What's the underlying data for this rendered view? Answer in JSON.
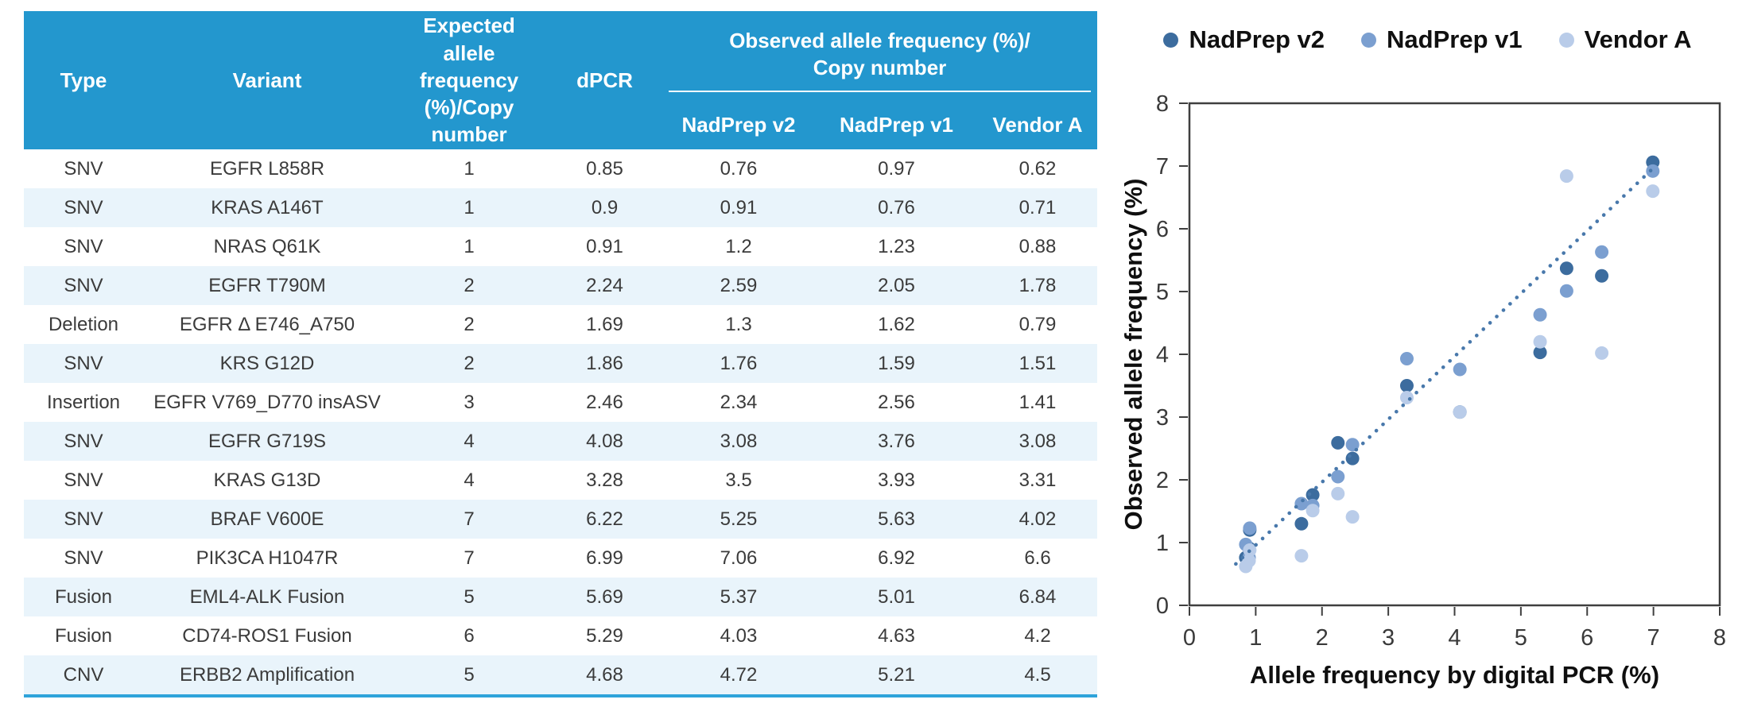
{
  "table": {
    "columns": [
      "Type",
      "Variant",
      "Expected allele frequency (%)/Copy number",
      "dPCR"
    ],
    "observed_group_line1": "Observed allele frequency (%)/",
    "observed_group_line2": "Copy number",
    "sub_columns": [
      "NadPrep v2",
      "NadPrep v1",
      "Vendor A"
    ],
    "rows": [
      {
        "type": "SNV",
        "variant": "EGFR L858R",
        "expected": "1",
        "dpcr": "0.85",
        "nadprep_v2": "0.76",
        "nadprep_v1": "0.97",
        "vendor_a": "0.62"
      },
      {
        "type": "SNV",
        "variant": "KRAS A146T",
        "expected": "1",
        "dpcr": "0.9",
        "nadprep_v2": "0.91",
        "nadprep_v1": "0.76",
        "vendor_a": "0.71"
      },
      {
        "type": "SNV",
        "variant": "NRAS Q61K",
        "expected": "1",
        "dpcr": "0.91",
        "nadprep_v2": "1.2",
        "nadprep_v1": "1.23",
        "vendor_a": "0.88"
      },
      {
        "type": "SNV",
        "variant": "EGFR T790M",
        "expected": "2",
        "dpcr": "2.24",
        "nadprep_v2": "2.59",
        "nadprep_v1": "2.05",
        "vendor_a": "1.78"
      },
      {
        "type": "Deletion",
        "variant": "EGFR Δ E746_A750",
        "expected": "2",
        "dpcr": "1.69",
        "nadprep_v2": "1.3",
        "nadprep_v1": "1.62",
        "vendor_a": "0.79"
      },
      {
        "type": "SNV",
        "variant": "KRS G12D",
        "expected": "2",
        "dpcr": "1.86",
        "nadprep_v2": "1.76",
        "nadprep_v1": "1.59",
        "vendor_a": "1.51"
      },
      {
        "type": "Insertion",
        "variant": "EGFR V769_D770 insASV",
        "expected": "3",
        "dpcr": "2.46",
        "nadprep_v2": "2.34",
        "nadprep_v1": "2.56",
        "vendor_a": "1.41"
      },
      {
        "type": "SNV",
        "variant": "EGFR G719S",
        "expected": "4",
        "dpcr": "4.08",
        "nadprep_v2": "3.08",
        "nadprep_v1": "3.76",
        "vendor_a": "3.08"
      },
      {
        "type": "SNV",
        "variant": "KRAS G13D",
        "expected": "4",
        "dpcr": "3.28",
        "nadprep_v2": "3.5",
        "nadprep_v1": "3.93",
        "vendor_a": "3.31"
      },
      {
        "type": "SNV",
        "variant": "BRAF V600E",
        "expected": "7",
        "dpcr": "6.22",
        "nadprep_v2": "5.25",
        "nadprep_v1": "5.63",
        "vendor_a": "4.02"
      },
      {
        "type": "SNV",
        "variant": "PIK3CA H1047R",
        "expected": "7",
        "dpcr": "6.99",
        "nadprep_v2": "7.06",
        "nadprep_v1": "6.92",
        "vendor_a": "6.6"
      },
      {
        "type": "Fusion",
        "variant": "EML4-ALK Fusion",
        "expected": "5",
        "dpcr": "5.69",
        "nadprep_v2": "5.37",
        "nadprep_v1": "5.01",
        "vendor_a": "6.84"
      },
      {
        "type": "Fusion",
        "variant": "CD74-ROS1 Fusion",
        "expected": "6",
        "dpcr": "5.29",
        "nadprep_v2": "4.03",
        "nadprep_v1": "4.63",
        "vendor_a": "4.2"
      },
      {
        "type": "CNV",
        "variant": "ERBB2 Amplification",
        "expected": "5",
        "dpcr": "4.68",
        "nadprep_v2": "4.72",
        "nadprep_v1": "5.21",
        "vendor_a": "4.5"
      }
    ]
  },
  "colors": {
    "table_header_bg": "#2397ce",
    "table_header_text": "#ffffff",
    "table_row_stripe": "#e9f4fb",
    "table_bottom_border": "#2ea3da",
    "series_nadprep_v2": "#3c6c9e",
    "series_nadprep_v1": "#7b9fd0",
    "series_vendor_a": "#b9cce9",
    "trendline": "#4878ab"
  },
  "chart_data": {
    "type": "scatter",
    "xlabel": "Allele frequency by digital PCR (%)",
    "ylabel": "Observed allele frequency (%)",
    "xlim": [
      0,
      8
    ],
    "ylim": [
      0,
      8
    ],
    "xticks": [
      0,
      1,
      2,
      3,
      4,
      5,
      6,
      7,
      8
    ],
    "yticks": [
      0,
      1,
      2,
      3,
      4,
      5,
      6,
      7,
      8
    ],
    "grid": false,
    "legend_position": "top",
    "series": [
      {
        "name": "NadPrep v2",
        "color": "#3c6c9e",
        "points": [
          [
            0.85,
            0.76
          ],
          [
            0.9,
            0.91
          ],
          [
            0.91,
            1.2
          ],
          [
            2.24,
            2.59
          ],
          [
            1.69,
            1.3
          ],
          [
            1.86,
            1.76
          ],
          [
            2.46,
            2.34
          ],
          [
            4.08,
            3.08
          ],
          [
            3.28,
            3.5
          ],
          [
            6.22,
            5.25
          ],
          [
            6.99,
            7.06
          ],
          [
            5.69,
            5.37
          ],
          [
            5.29,
            4.03
          ]
        ]
      },
      {
        "name": "NadPrep v1",
        "color": "#7b9fd0",
        "points": [
          [
            0.85,
            0.97
          ],
          [
            0.9,
            0.76
          ],
          [
            0.91,
            1.23
          ],
          [
            2.24,
            2.05
          ],
          [
            1.69,
            1.62
          ],
          [
            1.86,
            1.59
          ],
          [
            2.46,
            2.56
          ],
          [
            4.08,
            3.76
          ],
          [
            3.28,
            3.93
          ],
          [
            6.22,
            5.63
          ],
          [
            6.99,
            6.92
          ],
          [
            5.69,
            5.01
          ],
          [
            5.29,
            4.63
          ]
        ]
      },
      {
        "name": "Vendor A",
        "color": "#b9cce9",
        "points": [
          [
            0.85,
            0.62
          ],
          [
            0.9,
            0.71
          ],
          [
            0.91,
            0.88
          ],
          [
            2.24,
            1.78
          ],
          [
            1.69,
            0.79
          ],
          [
            1.86,
            1.51
          ],
          [
            2.46,
            1.41
          ],
          [
            4.08,
            3.08
          ],
          [
            3.28,
            3.31
          ],
          [
            6.22,
            4.02
          ],
          [
            6.99,
            6.6
          ],
          [
            5.69,
            6.84
          ],
          [
            5.29,
            4.2
          ]
        ]
      }
    ],
    "trendline": {
      "style": "dotted",
      "color": "#4878ab",
      "from": [
        0.7,
        0.66
      ],
      "to": [
        7.02,
        6.99
      ]
    }
  }
}
